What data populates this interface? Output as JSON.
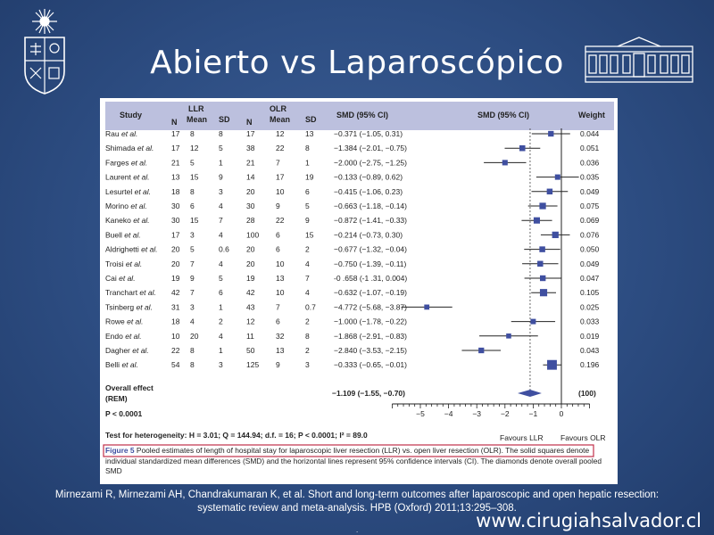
{
  "slide": {
    "title": "Abierto vs Laparoscópico",
    "citation_line1": "Mirnezami R, Mirnezami AH, Chandrakumaran K, et al. Short and long-term outcomes after laparoscopic and open hepatic resection:",
    "citation_line2": "systematic review and meta-analysis. HPB (Oxford) 2011;13:295–308.",
    "website": "www.cirugiahsalvador.cl",
    "footer_dot": "."
  },
  "colors": {
    "background": "#2d4d82",
    "header_band": "#bcc0de",
    "marker": "#3f4fa0",
    "caption_border": "#c0304a"
  },
  "chart_data": {
    "type": "forest",
    "title": "",
    "header": {
      "study": "Study",
      "n": "N",
      "llr": "LLR",
      "olr": "OLR",
      "mean": "Mean",
      "sd": "SD",
      "smd_text": "SMD (95% CI)",
      "smd_plot": "SMD (95% CI)",
      "weight": "Weight"
    },
    "studies": [
      {
        "study": "Rau",
        "etal": "et al.",
        "llr_n": "17",
        "llr_mean": "8",
        "llr_sd": "8",
        "olr_n": "17",
        "olr_mean": "12",
        "olr_sd": "13",
        "ci_text": "−0.371 (−1.05, 0.31)",
        "smd": -0.371,
        "lo": -1.05,
        "hi": 0.31,
        "weight": "0.044",
        "w": 0.044
      },
      {
        "study": "Shimada",
        "etal": "et al.",
        "llr_n": "17",
        "llr_mean": "12",
        "llr_sd": "5",
        "olr_n": "38",
        "olr_mean": "22",
        "olr_sd": "8",
        "ci_text": "−1.384 (−2.01, −0.75)",
        "smd": -1.384,
        "lo": -2.01,
        "hi": -0.75,
        "weight": "0.051",
        "w": 0.051
      },
      {
        "study": "Farges",
        "etal": "et al.",
        "llr_n": "21",
        "llr_mean": "5",
        "llr_sd": "1",
        "olr_n": "21",
        "olr_mean": "7",
        "olr_sd": "1",
        "ci_text": "−2.000 (−2.75, −1.25)",
        "smd": -2.0,
        "lo": -2.75,
        "hi": -1.25,
        "weight": "0.036",
        "w": 0.036
      },
      {
        "study": "Laurent",
        "etal": "et al.",
        "llr_n": "13",
        "llr_mean": "15",
        "llr_sd": "9",
        "olr_n": "14",
        "olr_mean": "17",
        "olr_sd": "19",
        "ci_text": "−0.133 (−0.89, 0.62)",
        "smd": -0.133,
        "lo": -0.89,
        "hi": 0.62,
        "weight": "0.035",
        "w": 0.035
      },
      {
        "study": "Lesurtel",
        "etal": "et al.",
        "llr_n": "18",
        "llr_mean": "8",
        "llr_sd": "3",
        "olr_n": "20",
        "olr_mean": "10",
        "olr_sd": "6",
        "ci_text": "−0.415 (−1.06, 0.23)",
        "smd": -0.415,
        "lo": -1.06,
        "hi": 0.23,
        "weight": "0.049",
        "w": 0.049
      },
      {
        "study": "Morino",
        "etal": "et al.",
        "llr_n": "30",
        "llr_mean": "6",
        "llr_sd": "4",
        "olr_n": "30",
        "olr_mean": "9",
        "olr_sd": "5",
        "ci_text": "−0.663 (−1.18, −0.14)",
        "smd": -0.663,
        "lo": -1.18,
        "hi": -0.14,
        "weight": "0.075",
        "w": 0.075
      },
      {
        "study": "Kaneko",
        "etal": "et al.",
        "llr_n": "30",
        "llr_mean": "15",
        "llr_sd": "7",
        "olr_n": "28",
        "olr_mean": "22",
        "olr_sd": "9",
        "ci_text": "−0.872 (−1.41, −0.33)",
        "smd": -0.872,
        "lo": -1.41,
        "hi": -0.33,
        "weight": "0.069",
        "w": 0.069
      },
      {
        "study": "Buell",
        "etal": "et al.",
        "llr_n": "17",
        "llr_mean": "3",
        "llr_sd": "4",
        "olr_n": "100",
        "olr_mean": "6",
        "olr_sd": "15",
        "ci_text": "−0.214 (−0.73, 0.30)",
        "smd": -0.214,
        "lo": -0.73,
        "hi": 0.3,
        "weight": "0.076",
        "w": 0.076
      },
      {
        "study": "Aldrighetti",
        "etal": "et al.",
        "llr_n": "20",
        "llr_mean": "5",
        "llr_sd": "0.6",
        "olr_n": "20",
        "olr_mean": "6",
        "olr_sd": "2",
        "ci_text": "−0.677 (−1.32, −0.04)",
        "smd": -0.677,
        "lo": -1.32,
        "hi": -0.04,
        "weight": "0.050",
        "w": 0.05
      },
      {
        "study": "Troisi",
        "etal": "et al.",
        "llr_n": "20",
        "llr_mean": "7",
        "llr_sd": "4",
        "olr_n": "20",
        "olr_mean": "10",
        "olr_sd": "4",
        "ci_text": "−0.750 (−1.39, −0.11)",
        "smd": -0.75,
        "lo": -1.39,
        "hi": -0.11,
        "weight": "0.049",
        "w": 0.049
      },
      {
        "study": "Cai",
        "etal": "et al.",
        "llr_n": "19",
        "llr_mean": "9",
        "llr_sd": "5",
        "olr_n": "19",
        "olr_mean": "13",
        "olr_sd": "7",
        "ci_text": "-0 .658 (-1 .31, 0.004)",
        "smd": -0.658,
        "lo": -1.31,
        "hi": 0.004,
        "weight": "0.047",
        "w": 0.047
      },
      {
        "study": "Tranchart",
        "etal": "et al.",
        "llr_n": "42",
        "llr_mean": "7",
        "llr_sd": "6",
        "olr_n": "42",
        "olr_mean": "10",
        "olr_sd": "4",
        "ci_text": "−0.632 (−1.07, −0.19)",
        "smd": -0.632,
        "lo": -1.07,
        "hi": -0.19,
        "weight": "0.105",
        "w": 0.105
      },
      {
        "study": "Tsinberg",
        "etal": "et al.",
        "llr_n": "31",
        "llr_mean": "3",
        "llr_sd": "1",
        "olr_n": "43",
        "olr_mean": "7",
        "olr_sd": "0.7",
        "ci_text": "−4.772 (−5.68, −3.87)",
        "smd": -4.772,
        "lo": -5.68,
        "hi": -3.87,
        "weight": "0.025",
        "w": 0.025
      },
      {
        "study": "Rowe",
        "etal": "et al.",
        "llr_n": "18",
        "llr_mean": "4",
        "llr_sd": "2",
        "olr_n": "12",
        "olr_mean": "6",
        "olr_sd": "2",
        "ci_text": "−1.000 (−1.78, −0.22)",
        "smd": -1.0,
        "lo": -1.78,
        "hi": -0.22,
        "weight": "0.033",
        "w": 0.033
      },
      {
        "study": "Endo",
        "etal": "et al.",
        "llr_n": "10",
        "llr_mean": "20",
        "llr_sd": "4",
        "olr_n": "11",
        "olr_mean": "32",
        "olr_sd": "8",
        "ci_text": "−1.868 (−2.91, −0.83)",
        "smd": -1.868,
        "lo": -2.91,
        "hi": -0.83,
        "weight": "0.019",
        "w": 0.019
      },
      {
        "study": "Dagher",
        "etal": "et al.",
        "llr_n": "22",
        "llr_mean": "8",
        "llr_sd": "1",
        "olr_n": "50",
        "olr_mean": "13",
        "olr_sd": "2",
        "ci_text": "−2.840 (−3.53, −2.15)",
        "smd": -2.84,
        "lo": -3.53,
        "hi": -2.15,
        "weight": "0.043",
        "w": 0.043
      },
      {
        "study": "Belli",
        "etal": "et al.",
        "llr_n": "54",
        "llr_mean": "8",
        "llr_sd": "3",
        "olr_n": "125",
        "olr_mean": "9",
        "olr_sd": "3",
        "ci_text": "−0.333 (−0.65, −0.01)",
        "smd": -0.333,
        "lo": -0.65,
        "hi": -0.01,
        "weight": "0.196",
        "w": 0.196
      }
    ],
    "overall": {
      "label": "Overall effect",
      "label2": "(REM)",
      "ci_text": "−1.109 (−1.55, −0.70)",
      "smd": -1.109,
      "lo": -1.55,
      "hi": -0.7,
      "weight": "(100)"
    },
    "p_value": "P < 0.0001",
    "heterogeneity": "Test for heterogeneity: H = 3.01; Q = 144.94; d.f. = 16; P < 0.0001; I² = 89.0",
    "xaxis": {
      "min": -6,
      "max": 1,
      "ticks": [
        -5,
        -4,
        -3,
        -2,
        -1,
        0
      ],
      "tick_labels": [
        "−5",
        "−4",
        "−3",
        "−2",
        "−1",
        "0"
      ]
    },
    "favours_left": "Favours LLR",
    "favours_right": "Favours OLR",
    "caption": {
      "label": "Figure 5",
      "text": "Pooled estimates of length of hospital stay for laparoscopic liver resection (LLR) vs. open liver resection (OLR). The solid squares denote individual standardized mean differences (SMD) and the horizontal lines represent 95% confidence intervals (CI). The diamonds denote overall pooled SMD"
    }
  }
}
